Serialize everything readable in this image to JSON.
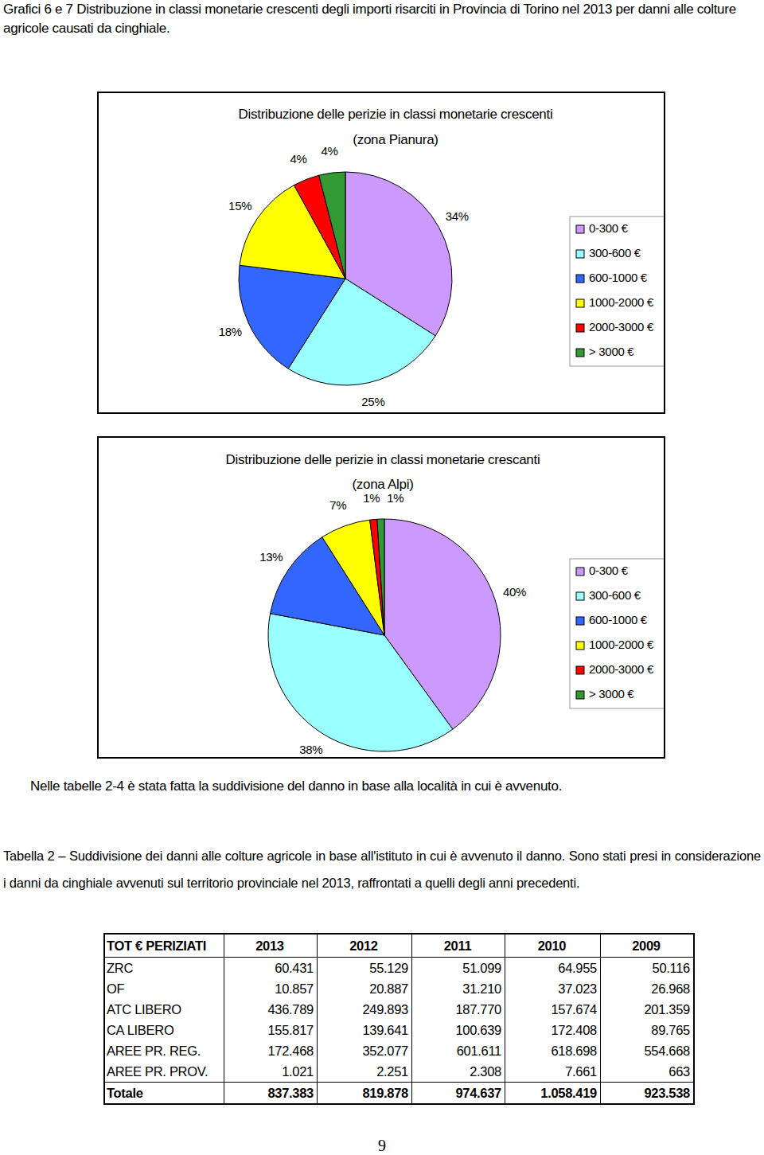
{
  "caption": "Grafici 6 e 7 Distribuzione in classi monetarie crescenti degli importi risarciti in Provincia di Torino nel 2013 per danni alle colture agricole causati da cinghiale.",
  "chart_data": [
    {
      "type": "pie",
      "title": "Distribuzione delle perizie in classi monetarie crescenti (zona Pianura)",
      "categories": [
        "0-300 €",
        "300-600 €",
        "600-1000 €",
        "1000-2000 €",
        "2000-3000 €",
        "> 3000 €"
      ],
      "values": [
        34,
        25,
        18,
        15,
        4,
        4
      ],
      "value_labels": [
        "34%",
        "25%",
        "18%",
        "15%",
        "4%",
        "4%"
      ],
      "colors": [
        "#cc99ff",
        "#99ffff",
        "#3366ff",
        "#ffff00",
        "#ff0000",
        "#339933"
      ],
      "data_labels": true,
      "legend": "right"
    },
    {
      "type": "pie",
      "title": "Distribuzione delle perizie in classi monetarie crescanti (zona Alpi)",
      "categories": [
        "0-300 €",
        "300-600 €",
        "600-1000 €",
        "1000-2000 €",
        "2000-3000 €",
        "> 3000 €"
      ],
      "values": [
        40,
        38,
        13,
        7,
        1,
        1
      ],
      "value_labels": [
        "40%",
        "38%",
        "13%",
        "7%",
        "1%",
        "1%"
      ],
      "colors": [
        "#cc99ff",
        "#99ffff",
        "#3366ff",
        "#ffff00",
        "#ff0000",
        "#339933"
      ],
      "data_labels": true,
      "legend": "right"
    }
  ],
  "paragraph": "Nelle tabelle 2-4 è stata fatta la suddivisione del danno in base alla località in cui è avvenuto.",
  "table": {
    "caption": "Tabella 2 – Suddivisione dei danni alle colture agricole in base all'istituto in cui è avvenuto il danno. Sono stati presi in considerazione i danni da cinghiale avvenuti sul territorio provinciale nel 2013, raffrontati a quelli degli anni precedenti.",
    "header": [
      "TOT € PERIZIATI",
      "2013",
      "2012",
      "2011",
      "2010",
      "2009"
    ],
    "rows": [
      [
        "ZRC",
        "60.431",
        "55.129",
        "51.099",
        "64.955",
        "50.116"
      ],
      [
        "OF",
        "10.857",
        "20.887",
        "31.210",
        "37.023",
        "26.968"
      ],
      [
        "ATC LIBERO",
        "436.789",
        "249.893",
        "187.770",
        "157.674",
        "201.359"
      ],
      [
        "CA LIBERO",
        "155.817",
        "139.641",
        "100.639",
        "172.408",
        "89.765"
      ],
      [
        "AREE PR. REG.",
        "172.468",
        "352.077",
        "601.611",
        "618.698",
        "554.668"
      ],
      [
        "AREE PR. PROV.",
        "1.021",
        "2.251",
        "2.308",
        "7.661",
        "663"
      ],
      [
        "Totale",
        "837.383",
        "819.878",
        "974.637",
        "1.058.419",
        "923.538"
      ]
    ]
  },
  "page_number": "9"
}
